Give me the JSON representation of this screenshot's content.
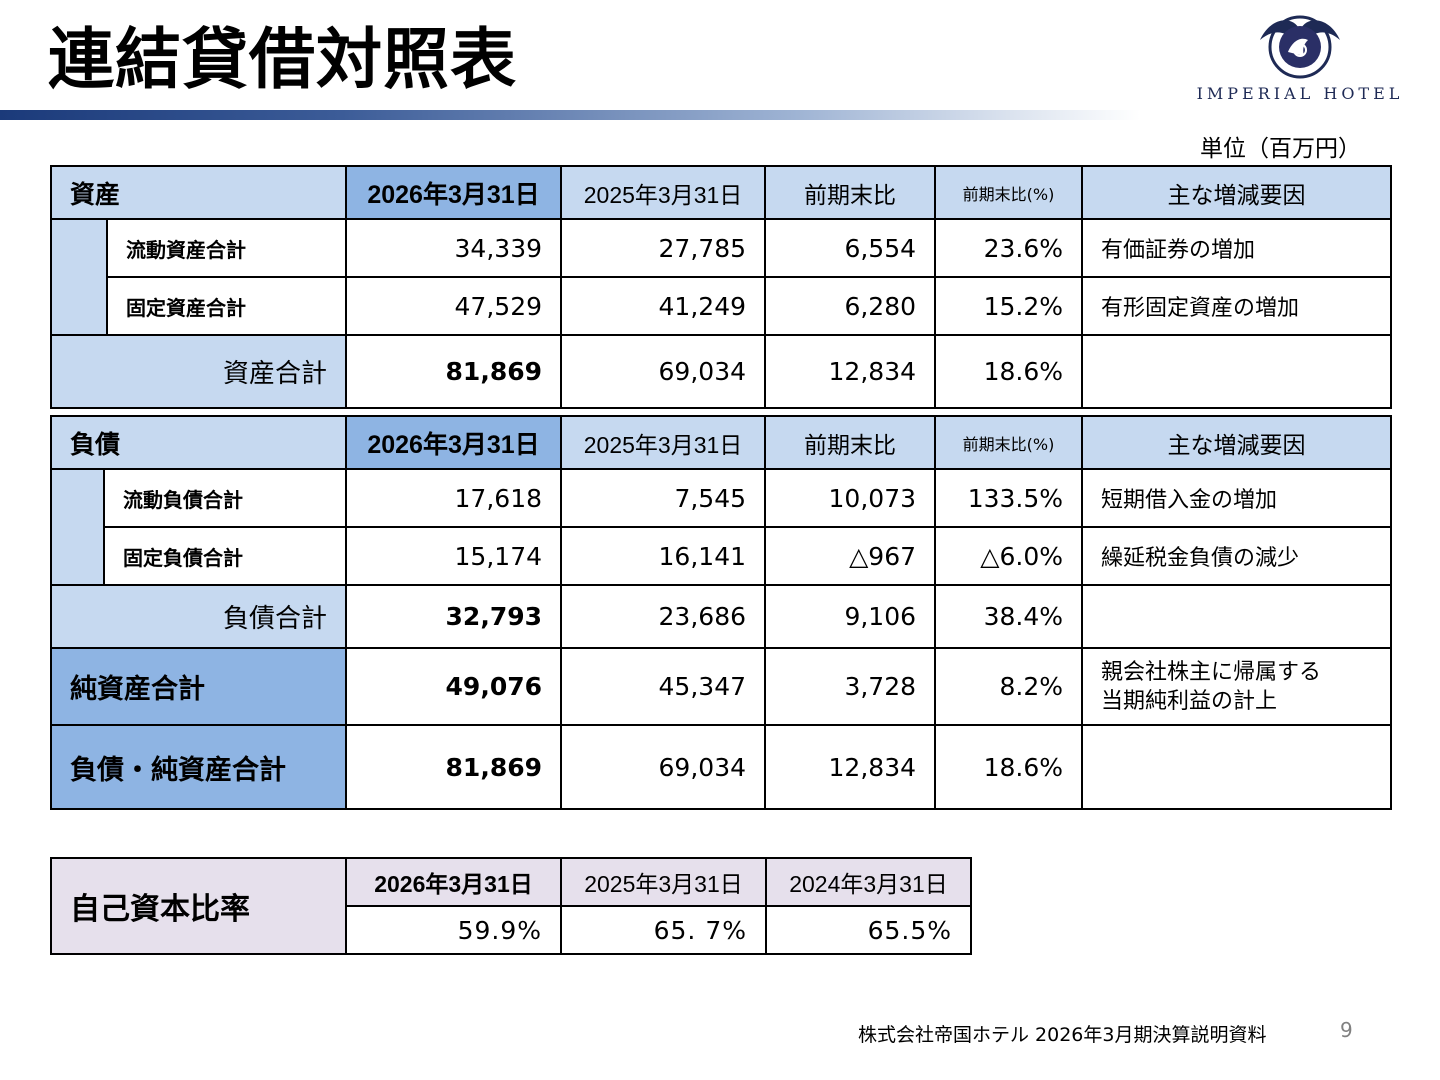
{
  "title": "連結貸借対照表",
  "logo": {
    "text": "IMPERIAL HOTEL",
    "seal_text": "IMPERIAL HOTEL"
  },
  "unit": "単位（百万円）",
  "columns": {
    "date1": "2026年3月31日",
    "date2": "2025年3月31日",
    "diff": "前期末比",
    "diff_pct": "前期末比(%)",
    "reason": "主な増減要因"
  },
  "assets": {
    "label": "資産",
    "rows": [
      {
        "label": "流動資産合計",
        "v1": "34,339",
        "v2": "27,785",
        "diff": "6,554",
        "pct": "23.6%",
        "reason": "有価証券の増加"
      },
      {
        "label": "固定資産合計",
        "v1": "47,529",
        "v2": "41,249",
        "diff": "6,280",
        "pct": "15.2%",
        "reason": "有形固定資産の増加"
      }
    ],
    "total": {
      "label": "資産合計",
      "v1": "81,869",
      "v2": "69,034",
      "diff": "12,834",
      "pct": "18.6%",
      "reason": ""
    }
  },
  "liabilities": {
    "label": "負債",
    "rows": [
      {
        "label": "流動負債合計",
        "v1": "17,618",
        "v2": "7,545",
        "diff": "10,073",
        "pct": "133.5%",
        "reason": "短期借入金の増加"
      },
      {
        "label": "固定負債合計",
        "v1": "15,174",
        "v2": "16,141",
        "diff": "△967",
        "pct": "△6.0%",
        "reason": "繰延税金負債の減少"
      }
    ],
    "total": {
      "label": "負債合計",
      "v1": "32,793",
      "v2": "23,686",
      "diff": "9,106",
      "pct": "38.4%",
      "reason": ""
    },
    "net_assets": {
      "label": "純資産合計",
      "v1": "49,076",
      "v2": "45,347",
      "diff": "3,728",
      "pct": "8.2%",
      "reason_line1": "親会社株主に帰属する",
      "reason_line2": "当期純利益の計上"
    },
    "grand_total": {
      "label": "負債・純資産合計",
      "v1": "81,869",
      "v2": "69,034",
      "diff": "12,834",
      "pct": "18.6%",
      "reason": ""
    }
  },
  "equity_ratio": {
    "label": "自己資本比率",
    "dates": [
      "2026年3月31日",
      "2025年3月31日",
      "2024年3月31日"
    ],
    "values": [
      "59.9%",
      "65. 7%",
      "65.5%"
    ]
  },
  "footer": {
    "text": "株式会社帝国ホテル 2026年3月期決算説明資料",
    "page": "9"
  }
}
